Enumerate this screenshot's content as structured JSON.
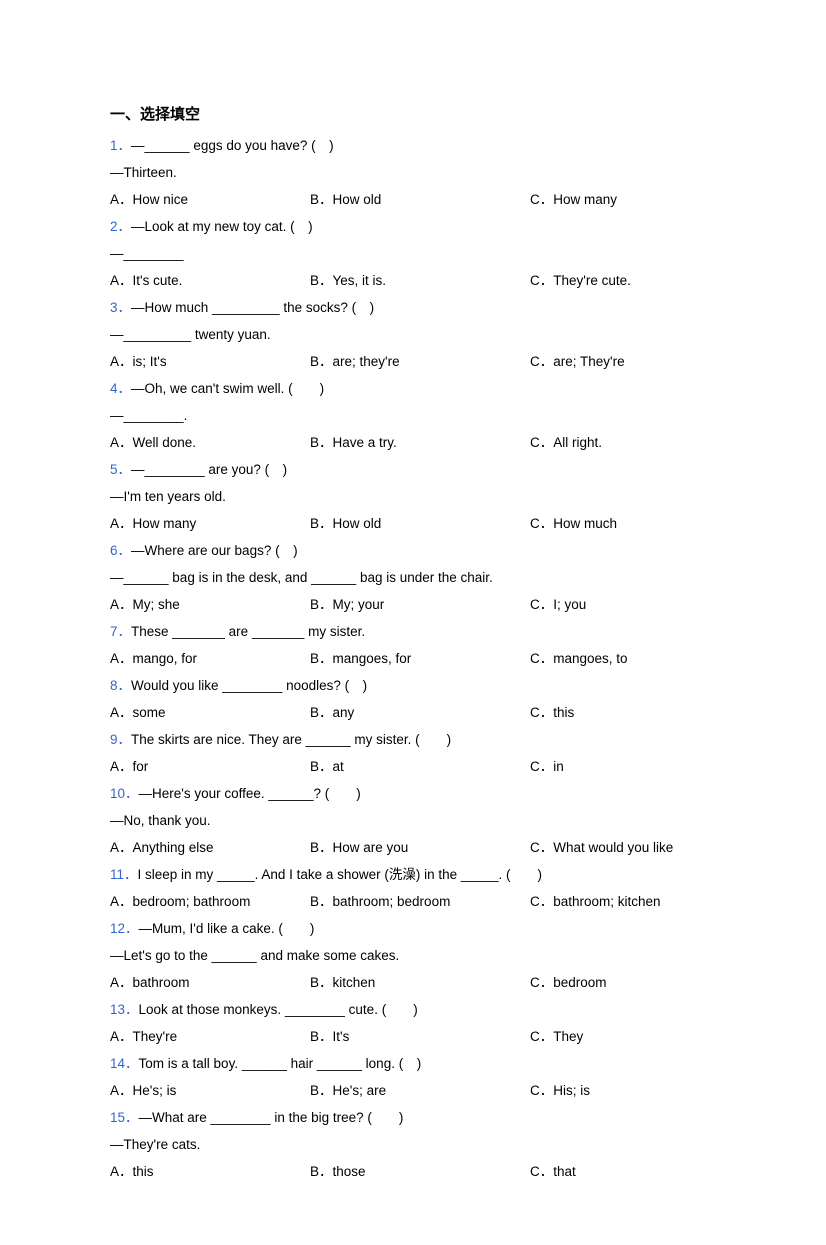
{
  "section_title": "一、选择填空",
  "qnum_color": "#3366cc",
  "text_color": "#000000",
  "questions": [
    {
      "num": "1．",
      "stem": "—______ eggs do you have? (　)",
      "extra": [
        "—Thirteen."
      ],
      "opts": {
        "a": "A．How nice",
        "b": "B．How old",
        "c": "C．How many"
      }
    },
    {
      "num": "2．",
      "stem": "—Look at my new toy cat. (　)",
      "extra": [
        "—________"
      ],
      "opts": {
        "a": "A．It's cute.",
        "b": "B．Yes, it is.",
        "c": "C．They're cute."
      }
    },
    {
      "num": "3．",
      "stem": "—How much _________ the socks? (　)",
      "extra": [
        "—_________ twenty yuan."
      ],
      "opts": {
        "a": "A．is; It's",
        "b": "B．are; they're",
        "c": "C．are; They're"
      }
    },
    {
      "num": "4．",
      "stem": "—Oh, we can't swim well. (　　)",
      "extra": [
        "—________."
      ],
      "opts": {
        "a": "A．Well done.",
        "b": "B．Have a try.",
        "c": "C．All right."
      }
    },
    {
      "num": "5．",
      "stem": "—________ are you? (　)",
      "extra": [
        "—I'm ten years old."
      ],
      "opts": {
        "a": "A．How many",
        "b": "B．How old",
        "c": "C．How much"
      }
    },
    {
      "num": "6．",
      "stem": "—Where are our bags? (　)",
      "extra": [
        "—______ bag is in the desk, and ______ bag is under the chair."
      ],
      "opts": {
        "a": "A．My; she",
        "b": "B．My; your",
        "c": "C．I; you"
      }
    },
    {
      "num": "7．",
      "stem": "These _______ are _______ my sister.",
      "extra": [],
      "opts": {
        "a": "A．mango, for",
        "b": "B．mangoes, for",
        "c": "C．mangoes, to"
      }
    },
    {
      "num": "8．",
      "stem": "Would you like ________ noodles? (　)",
      "extra": [],
      "opts": {
        "a": "A．some",
        "b": "B．any",
        "c": "C．this"
      }
    },
    {
      "num": "9．",
      "stem": "The skirts are nice. They are ______ my sister. (　　)",
      "extra": [],
      "opts": {
        "a": "A．for",
        "b": "B．at",
        "c": "C．in"
      }
    },
    {
      "num": "10．",
      "stem": "—Here's your coffee. ______? (　　)",
      "extra": [
        "—No, thank you."
      ],
      "opts": {
        "a": "A．Anything else",
        "b": "B．How are you",
        "c": "C．What would you like"
      }
    },
    {
      "num": "11．",
      "stem": "I sleep in my _____. And I take a shower (洗澡) in the _____. (　　)",
      "extra": [],
      "opts": {
        "a": "A．bedroom; bathroom",
        "b": "B．bathroom; bedroom",
        "c": "C．bathroom; kitchen"
      }
    },
    {
      "num": "12．",
      "stem": "—Mum, I'd like a cake. (　　)",
      "extra": [
        "—Let's go to the ______ and make some cakes."
      ],
      "opts": {
        "a": "A．bathroom",
        "b": "B．kitchen",
        "c": "C．bedroom"
      }
    },
    {
      "num": "13．",
      "stem": "Look at those monkeys. ________ cute. (　　)",
      "extra": [],
      "opts": {
        "a": "A．They're",
        "b": "B．It's",
        "c": "C．They"
      }
    },
    {
      "num": "14．",
      "stem": "Tom is a tall boy. ______ hair ______ long. (　)",
      "extra": [],
      "opts": {
        "a": "A．He's; is",
        "b": "B．He's; are",
        "c": "C．His; is"
      }
    },
    {
      "num": "15．",
      "stem": "—What are ________ in the big tree? (　　)",
      "extra": [
        "—They're cats."
      ],
      "opts": {
        "a": "A．this",
        "b": "B．those",
        "c": "C．that"
      }
    }
  ]
}
